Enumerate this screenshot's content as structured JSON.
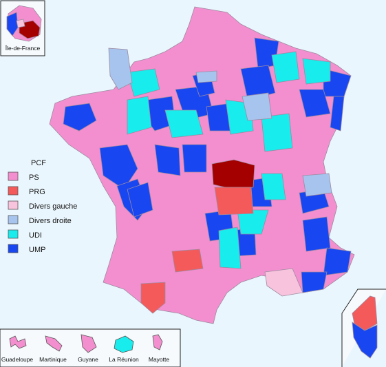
{
  "colors": {
    "PCF": "#a50000",
    "PS": "#f48fcf",
    "PRG": "#f45a5a",
    "Divers gauche": "#f8c3dc",
    "Divers droite": "#a6c4ee",
    "UDI": "#19ecec",
    "UMP": "#1846f0",
    "sea": "#eaf6fd",
    "border": "#9b8aa0"
  },
  "legend": [
    {
      "label": "PCF",
      "party": "PCF"
    },
    {
      "label": "PS",
      "party": "PS"
    },
    {
      "label": "PRG",
      "party": "PRG"
    },
    {
      "label": "Divers gauche",
      "party": "Divers gauche"
    },
    {
      "label": "Divers droite",
      "party": "Divers droite"
    },
    {
      "label": "UDI",
      "party": "UDI"
    },
    {
      "label": "UMP",
      "party": "UMP"
    }
  ],
  "insets": {
    "ile_de_france": "Île-de-France",
    "overseas": [
      {
        "label": "Guadeloupe",
        "party": "PS"
      },
      {
        "label": "Martinique",
        "party": "PS"
      },
      {
        "label": "Guyane",
        "party": "PS"
      },
      {
        "label": "La Réunion",
        "party": "UDI"
      },
      {
        "label": "Mayotte",
        "party": "PS"
      }
    ]
  }
}
